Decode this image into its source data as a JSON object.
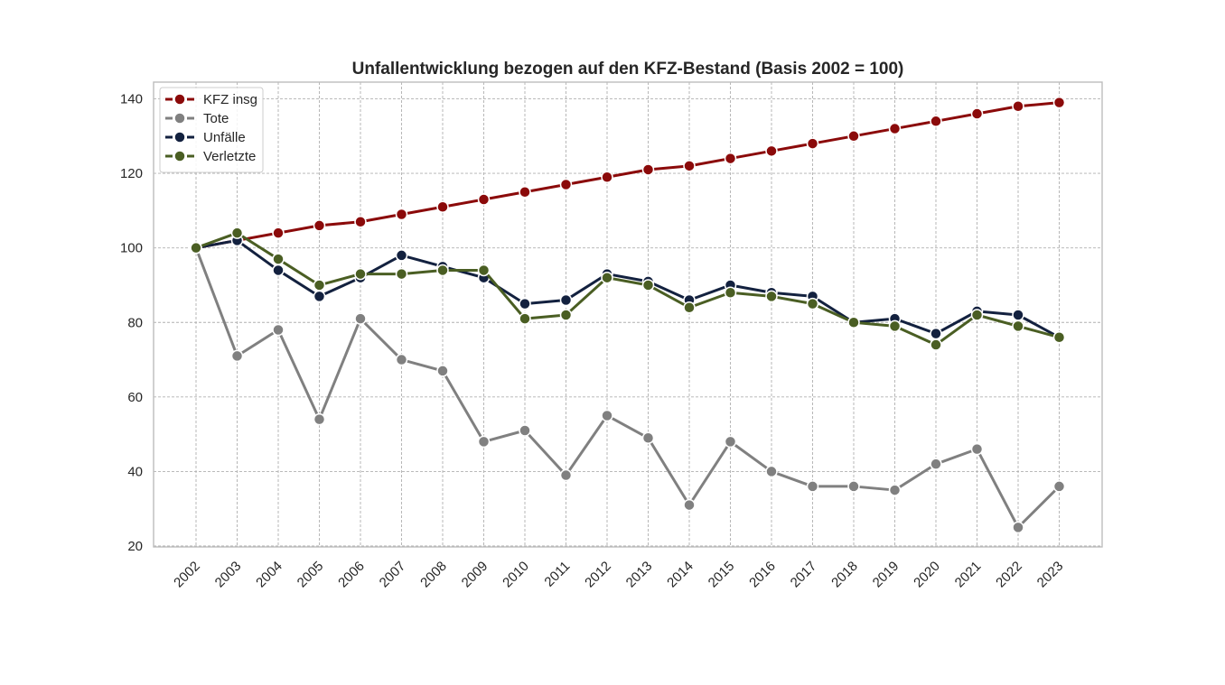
{
  "chart_data": {
    "type": "line",
    "title": "Unfallentwicklung bezogen auf den KFZ-Bestand (Basis 2002 = 100)",
    "xlabel": "",
    "ylabel": "",
    "categories": [
      "2002",
      "2003",
      "2004",
      "2005",
      "2006",
      "2007",
      "2008",
      "2009",
      "2010",
      "2011",
      "2012",
      "2013",
      "2014",
      "2015",
      "2016",
      "2017",
      "2018",
      "2019",
      "2020",
      "2021",
      "2022",
      "2023"
    ],
    "ylim": [
      20,
      144
    ],
    "yticks": [
      20,
      40,
      60,
      80,
      100,
      120,
      140
    ],
    "grid": true,
    "legend_position": "top-left",
    "series": [
      {
        "name": "KFZ insg",
        "color": "#8b0a0a",
        "values": [
          100,
          102,
          104,
          106,
          107,
          109,
          111,
          113,
          115,
          117,
          119,
          121,
          122,
          124,
          126,
          128,
          130,
          132,
          134,
          136,
          138,
          139
        ]
      },
      {
        "name": "Tote",
        "color": "#808080",
        "values": [
          100,
          71,
          78,
          54,
          81,
          70,
          67,
          48,
          51,
          39,
          55,
          49,
          31,
          48,
          40,
          36,
          36,
          35,
          42,
          46,
          25,
          36
        ]
      },
      {
        "name": "Unfälle",
        "color": "#13213f",
        "values": [
          100,
          102,
          94,
          87,
          92,
          98,
          95,
          92,
          85,
          86,
          93,
          91,
          86,
          90,
          88,
          87,
          80,
          81,
          77,
          83,
          82,
          76
        ]
      },
      {
        "name": "Verletzte",
        "color": "#4a5e23",
        "values": [
          100,
          104,
          97,
          90,
          93,
          93,
          94,
          94,
          81,
          82,
          92,
          90,
          84,
          88,
          87,
          85,
          80,
          79,
          74,
          82,
          79,
          76
        ]
      }
    ]
  }
}
